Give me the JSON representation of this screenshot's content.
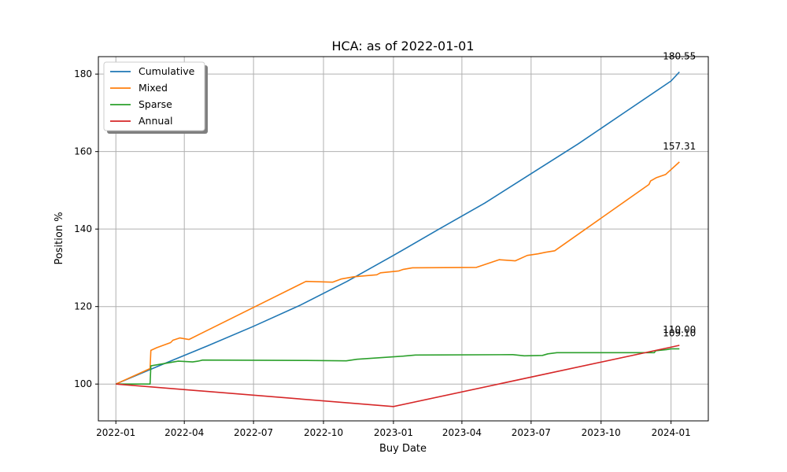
{
  "chart_data": {
    "type": "line",
    "title": "HCA: as of 2022-01-01",
    "xlabel": "Buy Date",
    "ylabel": "Position %",
    "xlim": [
      "2021-12-09",
      "2024-02-19"
    ],
    "ylim": [
      90.5,
      184.5
    ],
    "x_ticks": [
      "2022-01-01",
      "2022-04-01",
      "2022-07-01",
      "2022-10-01",
      "2023-01-01",
      "2023-04-01",
      "2023-07-01",
      "2023-10-01",
      "2024-01-01"
    ],
    "x_tick_labels": [
      "2022-01",
      "2022-04",
      "2022-07",
      "2022-10",
      "2023-01",
      "2023-04",
      "2023-07",
      "2023-10",
      "2024-01"
    ],
    "y_ticks": [
      100,
      120,
      140,
      160,
      180
    ],
    "y_tick_labels": [
      "100",
      "120",
      "140",
      "160",
      "180"
    ],
    "grid": true,
    "legend_position": "top-left",
    "series": [
      {
        "name": "Cumulative",
        "color": "#1f77b4",
        "points": [
          [
            "2022-01-01",
            100.0
          ],
          [
            "2022-03-01",
            104.9
          ],
          [
            "2022-05-01",
            109.8
          ],
          [
            "2022-07-01",
            114.9
          ],
          [
            "2022-09-01",
            120.4
          ],
          [
            "2022-11-01",
            126.5
          ],
          [
            "2023-01-01",
            133.2
          ],
          [
            "2023-03-01",
            139.9
          ],
          [
            "2023-05-01",
            146.7
          ],
          [
            "2023-07-01",
            154.3
          ],
          [
            "2023-09-01",
            162.0
          ],
          [
            "2023-11-01",
            170.1
          ],
          [
            "2024-01-01",
            178.2
          ],
          [
            "2024-01-12",
            180.55
          ]
        ]
      },
      {
        "name": "Mixed",
        "color": "#ff7f0e",
        "points": [
          [
            "2022-01-01",
            100.0
          ],
          [
            "2022-02-15",
            104.0
          ],
          [
            "2022-02-16",
            108.7
          ],
          [
            "2022-02-24",
            109.4
          ],
          [
            "2022-03-14",
            110.7
          ],
          [
            "2022-03-17",
            111.3
          ],
          [
            "2022-03-26",
            111.9
          ],
          [
            "2022-04-07",
            111.5
          ],
          [
            "2022-09-08",
            126.5
          ],
          [
            "2022-10-13",
            126.3
          ],
          [
            "2022-10-24",
            127.1
          ],
          [
            "2022-11-10",
            127.7
          ],
          [
            "2022-12-10",
            128.2
          ],
          [
            "2022-12-15",
            128.7
          ],
          [
            "2023-01-08",
            129.2
          ],
          [
            "2023-01-14",
            129.6
          ],
          [
            "2023-01-26",
            130.0
          ],
          [
            "2023-04-20",
            130.1
          ],
          [
            "2023-05-20",
            132.1
          ],
          [
            "2023-06-10",
            131.8
          ],
          [
            "2023-06-26",
            133.2
          ],
          [
            "2023-07-10",
            133.6
          ],
          [
            "2023-07-20",
            134.0
          ],
          [
            "2023-08-01",
            134.4
          ],
          [
            "2023-12-03",
            151.5
          ],
          [
            "2023-12-05",
            152.4
          ],
          [
            "2023-12-13",
            153.3
          ],
          [
            "2023-12-25",
            154.1
          ],
          [
            "2024-01-12",
            157.31
          ]
        ]
      },
      {
        "name": "Sparse",
        "color": "#2ca02c",
        "points": [
          [
            "2022-01-01",
            100.0
          ],
          [
            "2022-02-15",
            100.0
          ],
          [
            "2022-02-16",
            104.7
          ],
          [
            "2022-03-24",
            105.9
          ],
          [
            "2022-04-12",
            105.7
          ],
          [
            "2022-04-19",
            105.9
          ],
          [
            "2022-04-25",
            106.2
          ],
          [
            "2022-09-08",
            106.1
          ],
          [
            "2022-10-31",
            106.0
          ],
          [
            "2022-11-14",
            106.4
          ],
          [
            "2023-01-14",
            107.2
          ],
          [
            "2023-01-30",
            107.5
          ],
          [
            "2023-06-07",
            107.6
          ],
          [
            "2023-06-22",
            107.3
          ],
          [
            "2023-07-16",
            107.4
          ],
          [
            "2023-07-23",
            107.8
          ],
          [
            "2023-08-04",
            108.1
          ],
          [
            "2023-12-10",
            108.1
          ],
          [
            "2023-12-12",
            108.6
          ],
          [
            "2023-12-26",
            108.9
          ],
          [
            "2024-01-01",
            109.1
          ],
          [
            "2024-01-12",
            109.1
          ]
        ]
      },
      {
        "name": "Annual",
        "color": "#d62728",
        "points": [
          [
            "2022-01-01",
            100.0
          ],
          [
            "2023-01-01",
            94.2
          ],
          [
            "2024-01-12",
            110.0
          ]
        ]
      }
    ],
    "annotations": [
      {
        "text": "180.55",
        "x": "2024-01-12",
        "y": 180.55,
        "series": "Cumulative"
      },
      {
        "text": "157.31",
        "x": "2024-01-12",
        "y": 157.31,
        "series": "Mixed"
      },
      {
        "text": "109.10",
        "x": "2024-01-12",
        "y": 109.1,
        "series": "Sparse"
      },
      {
        "text": "110.00",
        "x": "2024-01-12",
        "y": 110.0,
        "series": "Annual"
      }
    ]
  }
}
